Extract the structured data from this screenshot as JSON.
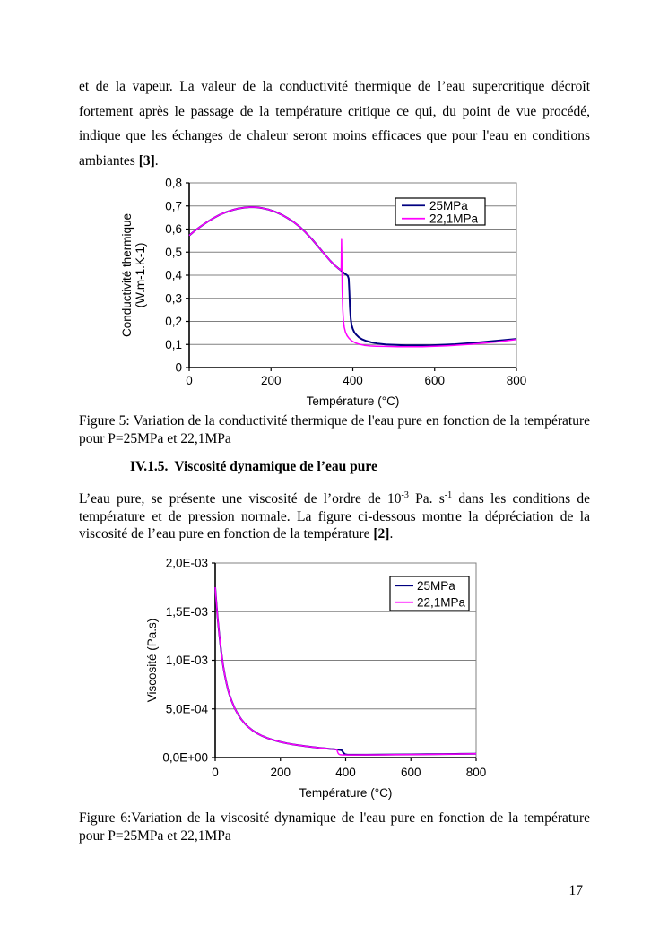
{
  "page": {
    "number": "17",
    "para1": {
      "body": "et de la vapeur. La valeur de la conductivité thermique de l’eau supercritique décroît fortement après le passage de la température critique ce qui, du point de vue procédé, indique que les échanges de chaleur seront moins efficaces que pour l'eau en conditions ambiantes ",
      "citation": "[3]",
      "after": "."
    },
    "caption5": {
      "text": "Figure 5: Variation de la conductivité thermique de l'eau pure en fonction de la température pour P=25MPa et 22,1MPa"
    },
    "heading": {
      "number": "IV.1.5.",
      "title": "Viscosité dynamique de l’eau pure"
    },
    "para2": {
      "p1": "L’eau pure, se présente une viscosité de l’ordre de 10",
      "sup1": "-3",
      "p2": " Pa. s",
      "sup2": "-1",
      "p3": " dans les conditions de température et de pression normale. La figure ci-dessous montre la dépréciation de la viscosité de l’eau pure en fonction de la température ",
      "citation": "[2]",
      "after": "."
    },
    "caption6": {
      "text": "Figure 6:Variation de la viscosité dynamique de l'eau pure en fonction de la température pour P=25MPa et 22,1MPa"
    }
  },
  "chart_data": [
    {
      "type": "line",
      "title": "",
      "xlabel": "Température (°C)",
      "ylabel": "Conductivité thermique (W.m-1.K-1)",
      "ylabel_lines": [
        "Conductivité thermique",
        "(W.m-1.K-1)"
      ],
      "xlim": [
        0,
        800
      ],
      "ylim": [
        0,
        0.8
      ],
      "grid": true,
      "grid_color": "#808080",
      "legend_position": "top-right-inside",
      "x_ticks": {
        "values": [
          0,
          200,
          400,
          600,
          800
        ],
        "labels": [
          "0",
          "200",
          "400",
          "600",
          "800"
        ]
      },
      "y_ticks": {
        "values": [
          0,
          0.1,
          0.2,
          0.3,
          0.4,
          0.5,
          0.6,
          0.7,
          0.8
        ],
        "labels": [
          "0",
          "0,1",
          "0,2",
          "0,3",
          "0,4",
          "0,5",
          "0,6",
          "0,7",
          "0,8"
        ]
      },
      "series": [
        {
          "name": "25MPa",
          "color": "#000080",
          "points": [
            [
              0,
              0.572
            ],
            [
              15,
              0.594
            ],
            [
              30,
              0.614
            ],
            [
              45,
              0.632
            ],
            [
              60,
              0.648
            ],
            [
              75,
              0.662
            ],
            [
              90,
              0.673
            ],
            [
              105,
              0.682
            ],
            [
              120,
              0.689
            ],
            [
              135,
              0.693
            ],
            [
              150,
              0.695
            ],
            [
              165,
              0.694
            ],
            [
              180,
              0.69
            ],
            [
              195,
              0.684
            ],
            [
              210,
              0.675
            ],
            [
              225,
              0.663
            ],
            [
              240,
              0.648
            ],
            [
              255,
              0.631
            ],
            [
              270,
              0.61
            ],
            [
              285,
              0.585
            ],
            [
              300,
              0.556
            ],
            [
              315,
              0.525
            ],
            [
              330,
              0.493
            ],
            [
              345,
              0.462
            ],
            [
              355,
              0.444
            ],
            [
              363,
              0.432
            ],
            [
              370,
              0.422
            ],
            [
              376,
              0.413
            ],
            [
              381,
              0.406
            ],
            [
              385,
              0.401
            ],
            [
              388,
              0.396
            ],
            [
              390,
              0.385
            ],
            [
              391.5,
              0.33
            ],
            [
              393,
              0.26
            ],
            [
              395,
              0.21
            ],
            [
              397,
              0.185
            ],
            [
              400,
              0.167
            ],
            [
              404,
              0.152
            ],
            [
              409,
              0.141
            ],
            [
              415,
              0.131
            ],
            [
              423,
              0.122
            ],
            [
              433,
              0.115
            ],
            [
              445,
              0.109
            ],
            [
              460,
              0.104
            ],
            [
              480,
              0.1
            ],
            [
              505,
              0.098
            ],
            [
              530,
              0.0965
            ],
            [
              560,
              0.096
            ],
            [
              590,
              0.0965
            ],
            [
              620,
              0.0985
            ],
            [
              650,
              0.101
            ],
            [
              680,
              0.105
            ],
            [
              710,
              0.109
            ],
            [
              740,
              0.114
            ],
            [
              770,
              0.119
            ],
            [
              800,
              0.124
            ]
          ]
        },
        {
          "name": "22,1MPa",
          "color": "#FF00FF",
          "points": [
            [
              0,
              0.572
            ],
            [
              15,
              0.594
            ],
            [
              30,
              0.614
            ],
            [
              45,
              0.632
            ],
            [
              60,
              0.648
            ],
            [
              75,
              0.662
            ],
            [
              90,
              0.673
            ],
            [
              105,
              0.682
            ],
            [
              120,
              0.689
            ],
            [
              135,
              0.693
            ],
            [
              150,
              0.695
            ],
            [
              165,
              0.694
            ],
            [
              180,
              0.69
            ],
            [
              195,
              0.684
            ],
            [
              210,
              0.675
            ],
            [
              225,
              0.663
            ],
            [
              240,
              0.648
            ],
            [
              255,
              0.631
            ],
            [
              270,
              0.61
            ],
            [
              285,
              0.585
            ],
            [
              300,
              0.556
            ],
            [
              315,
              0.525
            ],
            [
              330,
              0.493
            ],
            [
              345,
              0.462
            ],
            [
              355,
              0.444
            ],
            [
              363,
              0.432
            ],
            [
              370,
              0.422
            ],
            [
              371.5,
              0.43
            ],
            [
              372.3,
              0.555
            ],
            [
              373.2,
              0.46
            ],
            [
              374,
              0.34
            ],
            [
              375.5,
              0.25
            ],
            [
              377,
              0.205
            ],
            [
              379,
              0.175
            ],
            [
              382,
              0.153
            ],
            [
              386,
              0.138
            ],
            [
              391,
              0.126
            ],
            [
              398,
              0.115
            ],
            [
              406,
              0.107
            ],
            [
              416,
              0.101
            ],
            [
              428,
              0.0965
            ],
            [
              442,
              0.0935
            ],
            [
              458,
              0.0925
            ],
            [
              480,
              0.0915
            ],
            [
              510,
              0.0905
            ],
            [
              540,
              0.09
            ],
            [
              570,
              0.0905
            ],
            [
              600,
              0.0925
            ],
            [
              630,
              0.0945
            ],
            [
              660,
              0.0975
            ],
            [
              690,
              0.101
            ],
            [
              720,
              0.1055
            ],
            [
              750,
              0.1105
            ],
            [
              775,
              0.116
            ],
            [
              800,
              0.1215
            ]
          ]
        }
      ]
    },
    {
      "type": "line",
      "title": "",
      "xlabel": "Température (°C)",
      "ylabel": "Viscosité (Pa.s)",
      "ylabel_lines": [
        "Viscosité (Pa.s)"
      ],
      "xlim": [
        0,
        800
      ],
      "ylim": [
        0,
        0.002
      ],
      "grid": true,
      "grid_color": "#808080",
      "legend_position": "top-right-inside",
      "x_ticks": {
        "values": [
          0,
          200,
          400,
          600,
          800
        ],
        "labels": [
          "0",
          "200",
          "400",
          "600",
          "800"
        ]
      },
      "y_ticks": {
        "values": [
          0,
          0.0005,
          0.001,
          0.0015,
          0.002
        ],
        "labels": [
          "0,0E+00",
          "5,0E-04",
          "1,0E-03",
          "1,5E-03",
          "2,0E-03"
        ]
      },
      "series": [
        {
          "name": "25MPa",
          "color": "#000080",
          "points": [
            [
              0,
              0.00175
            ],
            [
              4,
              0.00157
            ],
            [
              8,
              0.00142
            ],
            [
              12,
              0.00128
            ],
            [
              16,
              0.00116
            ],
            [
              20,
              0.00105
            ],
            [
              25,
              0.00093
            ],
            [
              30,
              0.00084
            ],
            [
              35,
              0.00076
            ],
            [
              40,
              0.00069
            ],
            [
              45,
              0.00063
            ],
            [
              50,
              0.000585
            ],
            [
              60,
              0.000505
            ],
            [
              70,
              0.000443
            ],
            [
              80,
              0.000393
            ],
            [
              90,
              0.000352
            ],
            [
              100,
              0.000318
            ],
            [
              115,
              0.000277
            ],
            [
              130,
              0.000245
            ],
            [
              145,
              0.00022
            ],
            [
              160,
              0.0002
            ],
            [
              180,
              0.000178
            ],
            [
              200,
              0.00016
            ],
            [
              220,
              0.000146
            ],
            [
              240,
              0.000134
            ],
            [
              260,
              0.000124
            ],
            [
              280,
              0.000115
            ],
            [
              300,
              0.000107
            ],
            [
              320,
              0.0001
            ],
            [
              340,
              9.3e-05
            ],
            [
              355,
              8.8e-05
            ],
            [
              365,
              8.5e-05
            ],
            [
              370,
              8.3e-05
            ],
            [
              378,
              8e-05
            ],
            [
              385,
              7.7e-05
            ],
            [
              389,
              7.2e-05
            ],
            [
              391,
              6e-05
            ],
            [
              394,
              4.6e-05
            ],
            [
              397,
              3.7e-05
            ],
            [
              400,
              3.2e-05
            ],
            [
              405,
              3e-05
            ],
            [
              415,
              2.9e-05
            ],
            [
              435,
              2.85e-05
            ],
            [
              465,
              2.88e-05
            ],
            [
              500,
              2.95e-05
            ],
            [
              550,
              3.1e-05
            ],
            [
              600,
              3.25e-05
            ],
            [
              650,
              3.4e-05
            ],
            [
              700,
              3.6e-05
            ],
            [
              750,
              3.8e-05
            ],
            [
              800,
              4e-05
            ]
          ]
        },
        {
          "name": "22,1MPa",
          "color": "#FF00FF",
          "points": [
            [
              0,
              0.00175
            ],
            [
              4,
              0.00157
            ],
            [
              8,
              0.00142
            ],
            [
              12,
              0.00128
            ],
            [
              16,
              0.00116
            ],
            [
              20,
              0.00105
            ],
            [
              25,
              0.00093
            ],
            [
              30,
              0.00084
            ],
            [
              35,
              0.00076
            ],
            [
              40,
              0.00069
            ],
            [
              45,
              0.00063
            ],
            [
              50,
              0.000585
            ],
            [
              60,
              0.000505
            ],
            [
              70,
              0.000443
            ],
            [
              80,
              0.000393
            ],
            [
              90,
              0.000352
            ],
            [
              100,
              0.000318
            ],
            [
              115,
              0.000277
            ],
            [
              130,
              0.000245
            ],
            [
              145,
              0.00022
            ],
            [
              160,
              0.0002
            ],
            [
              180,
              0.000178
            ],
            [
              200,
              0.00016
            ],
            [
              220,
              0.000146
            ],
            [
              240,
              0.000134
            ],
            [
              260,
              0.000124
            ],
            [
              280,
              0.000115
            ],
            [
              300,
              0.000107
            ],
            [
              320,
              0.0001
            ],
            [
              340,
              9.3e-05
            ],
            [
              355,
              8.8e-05
            ],
            [
              365,
              8.5e-05
            ],
            [
              370,
              8.3e-05
            ],
            [
              373,
              8.1e-05
            ],
            [
              375,
              6e-05
            ],
            [
              377,
              4.4e-05
            ],
            [
              379,
              3.5e-05
            ],
            [
              382,
              3e-05
            ],
            [
              388,
              2.75e-05
            ],
            [
              400,
              2.68e-05
            ],
            [
              430,
              2.68e-05
            ],
            [
              460,
              2.72e-05
            ],
            [
              500,
              2.8e-05
            ],
            [
              550,
              2.95e-05
            ],
            [
              600,
              3.1e-05
            ],
            [
              650,
              3.25e-05
            ],
            [
              700,
              3.45e-05
            ],
            [
              750,
              3.65e-05
            ],
            [
              800,
              3.85e-05
            ]
          ]
        }
      ]
    }
  ]
}
